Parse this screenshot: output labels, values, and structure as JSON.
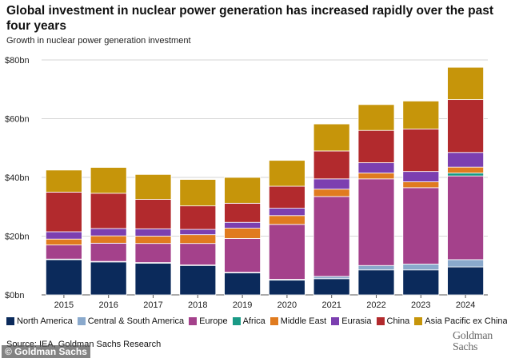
{
  "title": "Global investment in nuclear power generation has increased rapidly over the past four years",
  "subtitle": "Growth in nuclear power generation investment",
  "source": "Source: IEA, Goldman Sachs Research",
  "watermark": "© Goldman Sachs",
  "logo": {
    "line1": "Goldman",
    "line2": "Sachs"
  },
  "chart_data": {
    "type": "bar",
    "stacked": true,
    "categories": [
      "2015",
      "2016",
      "2017",
      "2018",
      "2019",
      "2020",
      "2021",
      "2022",
      "2023",
      "2024"
    ],
    "y_ticks": [
      0,
      20,
      40,
      60,
      80
    ],
    "y_tick_labels": [
      "$0bn",
      "$20bn",
      "$40bn",
      "$60bn",
      "$80bn"
    ],
    "ylim": [
      0,
      80
    ],
    "grid": true,
    "legend_position": "bottom",
    "series": [
      {
        "name": "North America",
        "color": "#0b2a5b",
        "values": [
          12,
          11.2,
          10.8,
          10,
          7.5,
          5,
          5.5,
          8.5,
          8.5,
          9.5
        ]
      },
      {
        "name": "Central & South America",
        "color": "#8aa9cc",
        "values": [
          0.2,
          0.2,
          0.2,
          0.2,
          0.2,
          0.3,
          0.8,
          1.5,
          2,
          2.5
        ]
      },
      {
        "name": "Europe",
        "color": "#a4418b",
        "values": [
          4.8,
          6.2,
          6.5,
          7.3,
          11.5,
          18.7,
          27.2,
          29.5,
          26,
          28.5
        ]
      },
      {
        "name": "Africa",
        "color": "#1a9a86",
        "values": [
          0,
          0,
          0,
          0,
          0,
          0,
          0,
          0,
          0,
          1
        ]
      },
      {
        "name": "Middle East",
        "color": "#e07b1f",
        "values": [
          2,
          2.5,
          2.5,
          3,
          3.5,
          3,
          2.5,
          2,
          2,
          2
        ]
      },
      {
        "name": "Eurasia",
        "color": "#7c3fb0",
        "values": [
          2.5,
          2.5,
          2.5,
          1.8,
          2,
          2.5,
          3.5,
          3.5,
          3.5,
          5
        ]
      },
      {
        "name": "China",
        "color": "#b22a2d",
        "values": [
          13.5,
          12,
          10,
          8,
          6.5,
          7.5,
          9.5,
          11,
          14.5,
          18
        ]
      },
      {
        "name": "Asia Pacific ex China",
        "color": "#c6950a",
        "values": [
          7.5,
          8.8,
          8.5,
          9,
          8.8,
          8.8,
          9.2,
          8.8,
          9.5,
          11
        ]
      }
    ]
  }
}
